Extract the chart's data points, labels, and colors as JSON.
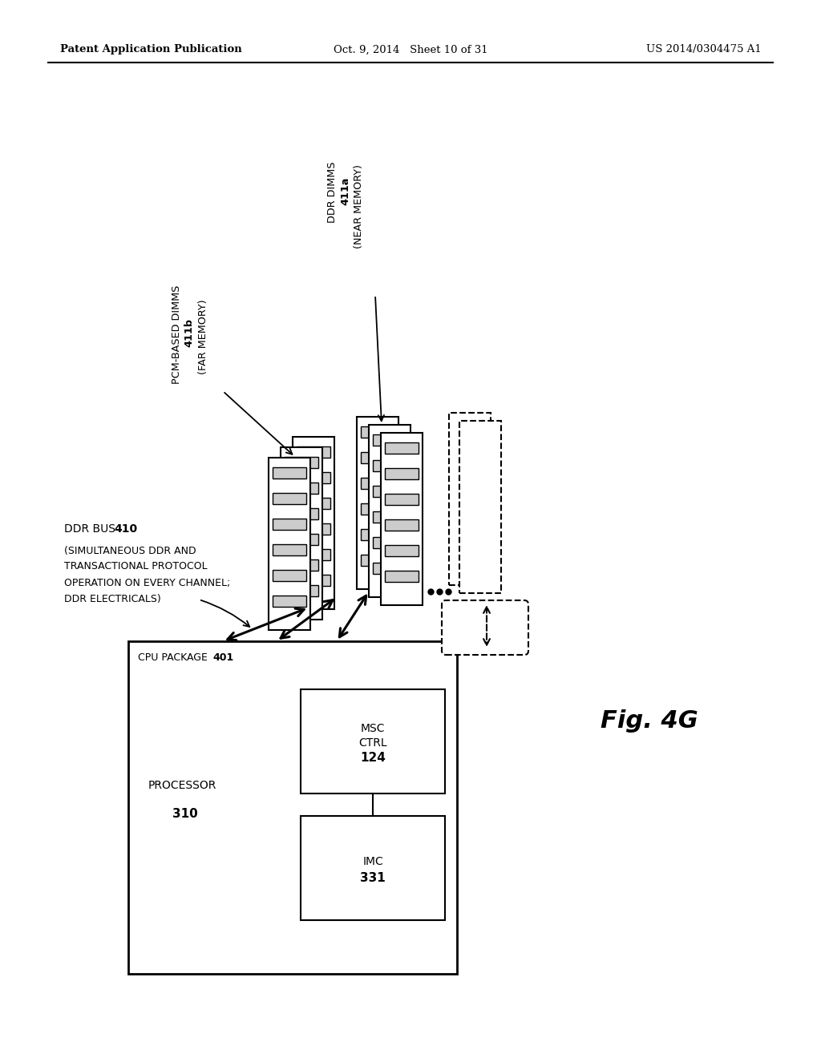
{
  "bg_color": "#ffffff",
  "header_left": "Patent Application Publication",
  "header_center": "Oct. 9, 2014   Sheet 10 of 31",
  "header_right": "US 2014/0304475 A1",
  "fig_label": "Fig. 4G"
}
